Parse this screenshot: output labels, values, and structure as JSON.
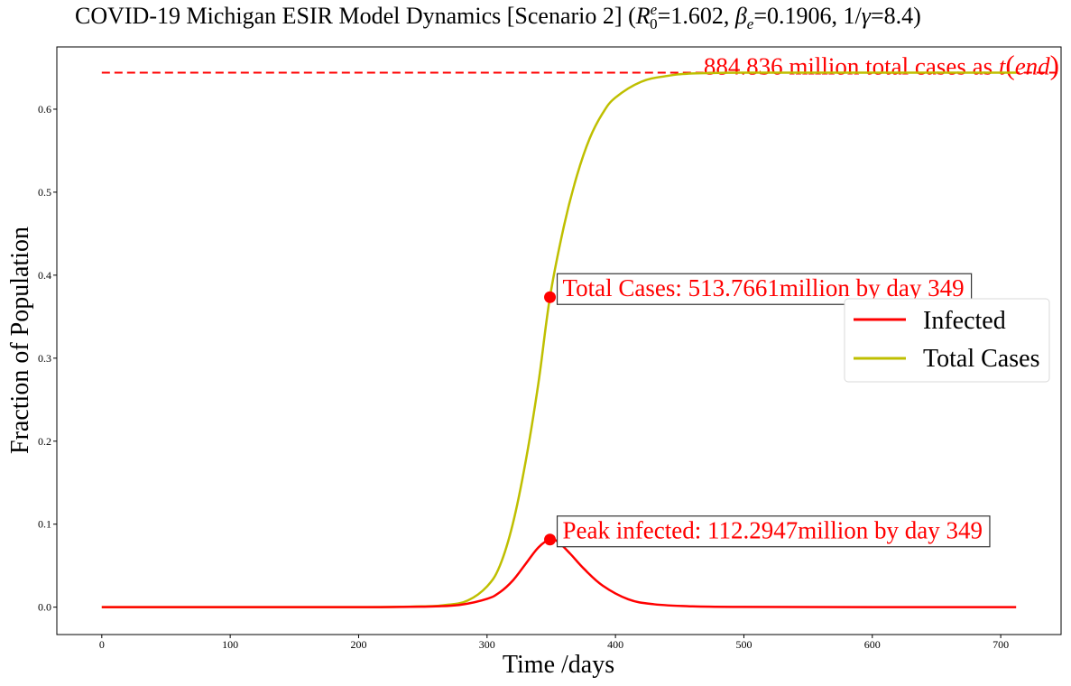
{
  "chart_data": {
    "type": "line",
    "title": "COVID-19 Michigan ESIR Model Dynamics [Scenario 2]",
    "title_params": {
      "r0_symbol": "R",
      "r0_sub": "0",
      "r0_sup": "e",
      "r0_value": "=1.602, ",
      "beta_symbol": "β",
      "beta_sub": "e",
      "beta_value": "=0.1906, 1/",
      "gamma_symbol": "γ",
      "gamma_value": "=8.4)"
    },
    "xlabel": "Time /days",
    "ylabel": "Fraction of Population",
    "xlim": [
      -35,
      747
    ],
    "ylim": [
      -0.033,
      0.675
    ],
    "xticks": [
      0,
      100,
      200,
      300,
      400,
      500,
      600,
      700
    ],
    "yticks": [
      0.0,
      0.1,
      0.2,
      0.3,
      0.4,
      0.5,
      0.6
    ],
    "series": [
      {
        "name": "Infected",
        "color": "#ff0000",
        "x": [
          0,
          100,
          200,
          240,
          260,
          280,
          300,
          310,
          320,
          330,
          340,
          349,
          355,
          365,
          375,
          390,
          410,
          430,
          460,
          500,
          600,
          712
        ],
        "y": [
          0,
          0,
          0,
          0.0005,
          0.001,
          0.003,
          0.01,
          0.018,
          0.032,
          0.052,
          0.072,
          0.0815,
          0.079,
          0.064,
          0.047,
          0.026,
          0.0095,
          0.0035,
          0.001,
          0.0003,
          0,
          0
        ]
      },
      {
        "name": "Total Cases",
        "color": "#bfbf00",
        "x": [
          0,
          100,
          200,
          250,
          270,
          285,
          300,
          310,
          320,
          330,
          340,
          349,
          360,
          370,
          380,
          390,
          400,
          420,
          440,
          460,
          500,
          600,
          712
        ],
        "y": [
          0,
          0,
          0,
          0.001,
          0.003,
          0.008,
          0.025,
          0.05,
          0.1,
          0.175,
          0.27,
          0.3735,
          0.46,
          0.52,
          0.565,
          0.595,
          0.614,
          0.633,
          0.64,
          0.643,
          0.644,
          0.644,
          0.644
        ]
      }
    ],
    "reference_line": {
      "y": 0.644,
      "x_range": [
        0,
        712
      ],
      "color": "#ff0000",
      "style": "dashed",
      "label_prefix": "884.836 million total cases as ",
      "label_t": "t",
      "label_open": "(",
      "label_end": "end",
      "label_close": ")"
    },
    "annotations": [
      {
        "id": "total",
        "text": "Total Cases: 513.7661million by day 349",
        "x": 349,
        "y": 0.3735,
        "color": "#ff0000"
      },
      {
        "id": "peak",
        "text": "Peak infected: 112.2947million by day 349",
        "x": 349,
        "y": 0.0815,
        "color": "#ff0000"
      }
    ],
    "legend": {
      "placement": "center-right",
      "entries": [
        "Infected",
        "Total Cases"
      ]
    },
    "grid": false
  }
}
